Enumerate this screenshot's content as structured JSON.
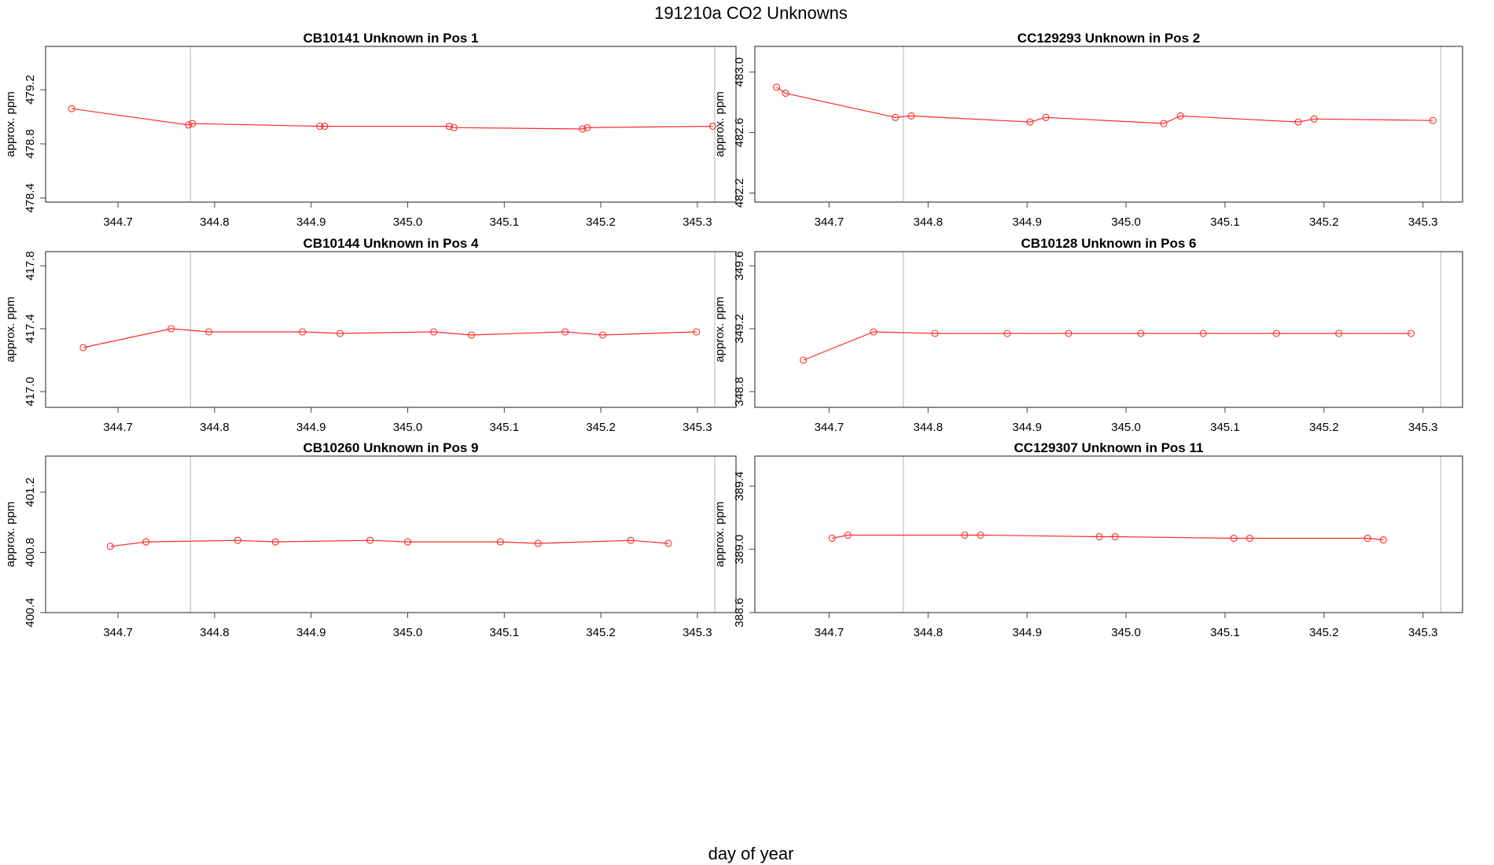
{
  "title": "191210a  CO2 Unknowns",
  "xlabel": "day of year",
  "marker_color": "#ff2a2a",
  "ref_line_color": "#c8c8c8",
  "chart_data": [
    {
      "type": "line",
      "title": "CB10141    Unknown in Pos 1",
      "ylabel": "approx. ppm",
      "xlim": [
        344.625,
        345.34
      ],
      "ylim": [
        478.37,
        479.52
      ],
      "xticks": [
        344.7,
        344.8,
        344.9,
        345.0,
        345.1,
        345.2,
        345.3
      ],
      "yticks": [
        478.4,
        478.8,
        479.2
      ],
      "xtick_labels": [
        "344.7",
        "344.8",
        "344.9",
        "345.0",
        "345.1",
        "345.2",
        "345.3"
      ],
      "ytick_labels": [
        "478.4",
        "478.8",
        "479.2"
      ],
      "vlines": [
        344.775,
        345.318
      ],
      "x": [
        344.652,
        344.773,
        344.777,
        344.909,
        344.914,
        345.043,
        345.048,
        345.181,
        345.186,
        345.316
      ],
      "y": [
        479.06,
        478.94,
        478.95,
        478.93,
        478.93,
        478.93,
        478.92,
        478.91,
        478.92,
        478.93
      ]
    },
    {
      "type": "line",
      "title": "CC129293    Unknown in Pos 2",
      "ylabel": "approx. ppm",
      "xlim": [
        344.625,
        345.34
      ],
      "ylim": [
        482.14,
        483.17
      ],
      "xticks": [
        344.7,
        344.8,
        344.9,
        345.0,
        345.1,
        345.2,
        345.3
      ],
      "yticks": [
        482.2,
        482.6,
        483.0
      ],
      "xtick_labels": [
        "344.7",
        "344.8",
        "344.9",
        "345.0",
        "345.1",
        "345.2",
        "345.3"
      ],
      "ytick_labels": [
        "482.2",
        "482.6",
        "483.0"
      ],
      "vlines": [
        344.775,
        345.318
      ],
      "x": [
        344.647,
        344.656,
        344.767,
        344.783,
        344.903,
        344.919,
        345.038,
        345.055,
        345.174,
        345.19,
        345.31
      ],
      "y": [
        482.9,
        482.86,
        482.7,
        482.71,
        482.67,
        482.7,
        482.66,
        482.71,
        482.67,
        482.69,
        482.68
      ]
    },
    {
      "type": "line",
      "title": "CB10144    Unknown in Pos 4",
      "ylabel": "approx. ppm",
      "xlim": [
        344.625,
        345.34
      ],
      "ylim": [
        416.9,
        417.89
      ],
      "xticks": [
        344.7,
        344.8,
        344.9,
        345.0,
        345.1,
        345.2,
        345.3
      ],
      "yticks": [
        417.0,
        417.4,
        417.8
      ],
      "xtick_labels": [
        "344.7",
        "344.8",
        "344.9",
        "345.0",
        "345.1",
        "345.2",
        "345.3"
      ],
      "ytick_labels": [
        "417.0",
        "417.4",
        "417.8"
      ],
      "vlines": [
        344.775,
        345.318
      ],
      "x": [
        344.664,
        344.755,
        344.794,
        344.891,
        344.93,
        345.027,
        345.066,
        345.163,
        345.202,
        345.299
      ],
      "y": [
        417.28,
        417.4,
        417.38,
        417.38,
        417.37,
        417.38,
        417.36,
        417.38,
        417.36,
        417.38
      ]
    },
    {
      "type": "line",
      "title": "CB10128    Unknown in Pos 6",
      "ylabel": "approx. ppm",
      "xlim": [
        344.625,
        345.34
      ],
      "ylim": [
        348.7,
        349.69
      ],
      "xticks": [
        344.7,
        344.8,
        344.9,
        345.0,
        345.1,
        345.2,
        345.3
      ],
      "yticks": [
        348.8,
        349.2,
        349.6
      ],
      "xtick_labels": [
        "344.7",
        "344.8",
        "344.9",
        "345.0",
        "345.1",
        "345.2",
        "345.3"
      ],
      "ytick_labels": [
        "348.8",
        "349.2",
        "349.6"
      ],
      "vlines": [
        344.775,
        345.318
      ],
      "x": [
        344.674,
        344.745,
        344.807,
        344.88,
        344.942,
        345.015,
        345.078,
        345.152,
        345.215,
        345.288
      ],
      "y": [
        349.0,
        349.18,
        349.17,
        349.17,
        349.17,
        349.17,
        349.17,
        349.17,
        349.17,
        349.17
      ]
    },
    {
      "type": "line",
      "title": "CB10260    Unknown in Pos 9",
      "ylabel": "approx. ppm",
      "xlim": [
        344.625,
        345.34
      ],
      "ylim": [
        400.4,
        401.44
      ],
      "xticks": [
        344.7,
        344.8,
        344.9,
        345.0,
        345.1,
        345.2,
        345.3
      ],
      "yticks": [
        400.4,
        400.8,
        401.2
      ],
      "xtick_labels": [
        "344.7",
        "344.8",
        "344.9",
        "345.0",
        "345.1",
        "345.2",
        "345.3"
      ],
      "ytick_labels": [
        "400.4",
        "400.8",
        "401.2"
      ],
      "vlines": [
        344.775,
        345.318
      ],
      "x": [
        344.692,
        344.729,
        344.824,
        344.863,
        344.961,
        345.0,
        345.096,
        345.135,
        345.231,
        345.27
      ],
      "y": [
        400.84,
        400.87,
        400.88,
        400.87,
        400.88,
        400.87,
        400.87,
        400.86,
        400.88,
        400.86
      ]
    },
    {
      "type": "line",
      "title": "CC129307    Unknown in Pos 11",
      "ylabel": "approx. ppm",
      "xlim": [
        344.625,
        345.34
      ],
      "ylim": [
        388.6,
        389.59
      ],
      "xticks": [
        344.7,
        344.8,
        344.9,
        345.0,
        345.1,
        345.2,
        345.3
      ],
      "yticks": [
        388.6,
        389.0,
        389.4
      ],
      "xtick_labels": [
        "344.7",
        "344.8",
        "344.9",
        "345.0",
        "345.1",
        "345.2",
        "345.3"
      ],
      "ytick_labels": [
        "388.6",
        "389.0",
        "389.4"
      ],
      "vlines": [
        344.775,
        345.318
      ],
      "x": [
        344.703,
        344.719,
        344.837,
        344.853,
        344.973,
        344.989,
        345.109,
        345.125,
        345.244,
        345.26
      ],
      "y": [
        389.07,
        389.09,
        389.09,
        389.09,
        389.08,
        389.08,
        389.07,
        389.07,
        389.07,
        389.06
      ]
    }
  ]
}
